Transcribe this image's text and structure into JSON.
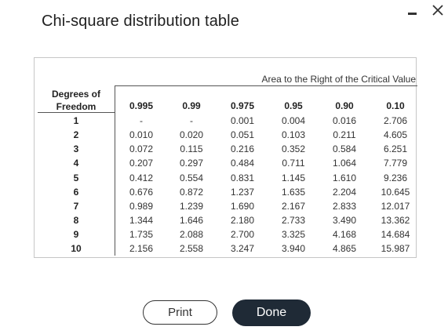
{
  "dialog": {
    "title": "Chi-square distribution table"
  },
  "window_controls": {
    "minimize_icon": "minimize-icon",
    "close_icon": "close-icon"
  },
  "table": {
    "area_caption": "Area to the Right of the Critical Value",
    "df_header_line1": "Degrees of",
    "df_header_line2": "Freedom",
    "columns": [
      "0.995",
      "0.99",
      "0.975",
      "0.95",
      "0.90",
      "0.10"
    ],
    "rows": [
      {
        "df": "1",
        "values": [
          "-",
          "-",
          "0.001",
          "0.004",
          "0.016",
          "2.706"
        ]
      },
      {
        "df": "2",
        "values": [
          "0.010",
          "0.020",
          "0.051",
          "0.103",
          "0.211",
          "4.605"
        ]
      },
      {
        "df": "3",
        "values": [
          "0.072",
          "0.115",
          "0.216",
          "0.352",
          "0.584",
          "6.251"
        ]
      },
      {
        "df": "4",
        "values": [
          "0.207",
          "0.297",
          "0.484",
          "0.711",
          "1.064",
          "7.779"
        ]
      },
      {
        "df": "5",
        "values": [
          "0.412",
          "0.554",
          "0.831",
          "1.145",
          "1.610",
          "9.236"
        ]
      },
      {
        "df": "6",
        "values": [
          "0.676",
          "0.872",
          "1.237",
          "1.635",
          "2.204",
          "10.645"
        ]
      },
      {
        "df": "7",
        "values": [
          "0.989",
          "1.239",
          "1.690",
          "2.167",
          "2.833",
          "12.017"
        ]
      },
      {
        "df": "8",
        "values": [
          "1.344",
          "1.646",
          "2.180",
          "2.733",
          "3.490",
          "13.362"
        ]
      },
      {
        "df": "9",
        "values": [
          "1.735",
          "2.088",
          "2.700",
          "3.325",
          "4.168",
          "14.684"
        ]
      },
      {
        "df": "10",
        "values": [
          "2.156",
          "2.558",
          "3.247",
          "3.940",
          "4.865",
          "15.987"
        ]
      }
    ]
  },
  "buttons": {
    "print_label": "Print",
    "done_label": "Done"
  },
  "colors": {
    "done_background": "#1f2a36",
    "border": "#c6c6c6"
  }
}
